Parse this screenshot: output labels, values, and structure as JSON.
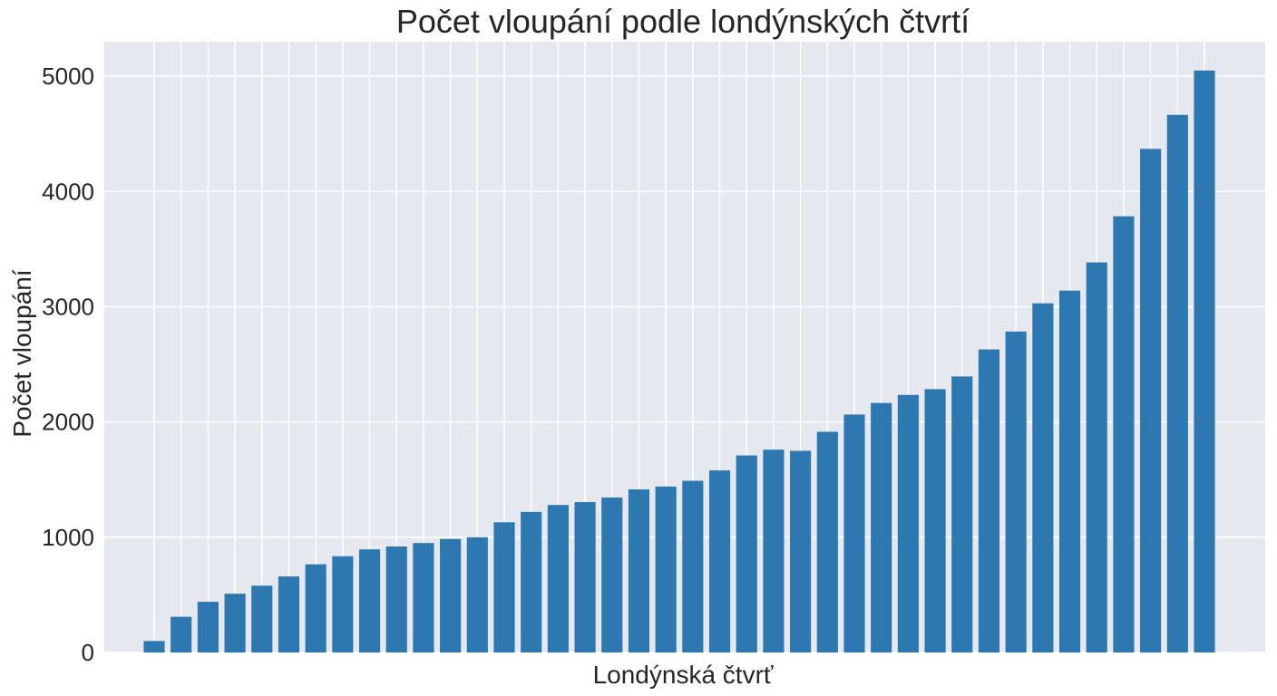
{
  "chart_data": {
    "type": "bar",
    "title": "Počet vloupání podle londýnských čtvrtí",
    "xlabel": "Londýnská čtvrť",
    "ylabel": "Počet vloupání",
    "ylim": [
      0,
      5300
    ],
    "yticks": [
      0,
      1000,
      2000,
      3000,
      4000,
      5000
    ],
    "grid": true,
    "bar_color": "#2e78b1",
    "background_color": "#e6e8ef",
    "grid_color": "#ffffff",
    "values": [
      100,
      310,
      440,
      510,
      580,
      660,
      765,
      835,
      895,
      920,
      950,
      985,
      1000,
      1130,
      1220,
      1280,
      1305,
      1345,
      1415,
      1440,
      1490,
      1580,
      1710,
      1760,
      1750,
      1915,
      2065,
      2165,
      2235,
      2285,
      2395,
      2630,
      2785,
      3030,
      3140,
      3385,
      3785,
      4370,
      4665,
      5050
    ]
  }
}
